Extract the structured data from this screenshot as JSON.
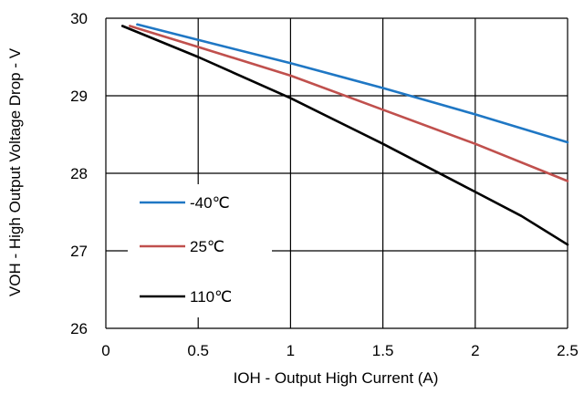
{
  "chart_data": {
    "type": "line",
    "title": "",
    "xlabel": "IOH - Output High Current (A)",
    "ylabel": "VOH - High Output Voltage Drop - V",
    "xlim": [
      0,
      2.5
    ],
    "ylim": [
      26,
      30
    ],
    "xticks": [
      0,
      0.5,
      1,
      1.5,
      2,
      2.5
    ],
    "xtick_labels": [
      "0",
      "0.5",
      "1",
      "1.5",
      "2",
      "2.5"
    ],
    "yticks": [
      26,
      27,
      28,
      29,
      30
    ],
    "ytick_labels": [
      "26",
      "27",
      "28",
      "29",
      "30"
    ],
    "grid": true,
    "legend_position": "left",
    "series": [
      {
        "name": "-40℃",
        "color": "#1f77c4",
        "x": [
          0.17,
          0.5,
          1.0,
          1.5,
          2.0,
          2.5
        ],
        "y": [
          29.92,
          29.72,
          29.42,
          29.1,
          28.76,
          28.4
        ]
      },
      {
        "name": "25℃",
        "color": "#c0504d",
        "x": [
          0.13,
          0.5,
          1.0,
          1.5,
          2.0,
          2.5
        ],
        "y": [
          29.9,
          29.63,
          29.26,
          28.82,
          28.38,
          27.9
        ]
      },
      {
        "name": "110℃",
        "color": "#000000",
        "x": [
          0.09,
          0.5,
          1.0,
          1.5,
          2.0,
          2.25,
          2.5
        ],
        "y": [
          29.9,
          29.5,
          28.97,
          28.38,
          27.76,
          27.45,
          27.08
        ]
      }
    ]
  }
}
